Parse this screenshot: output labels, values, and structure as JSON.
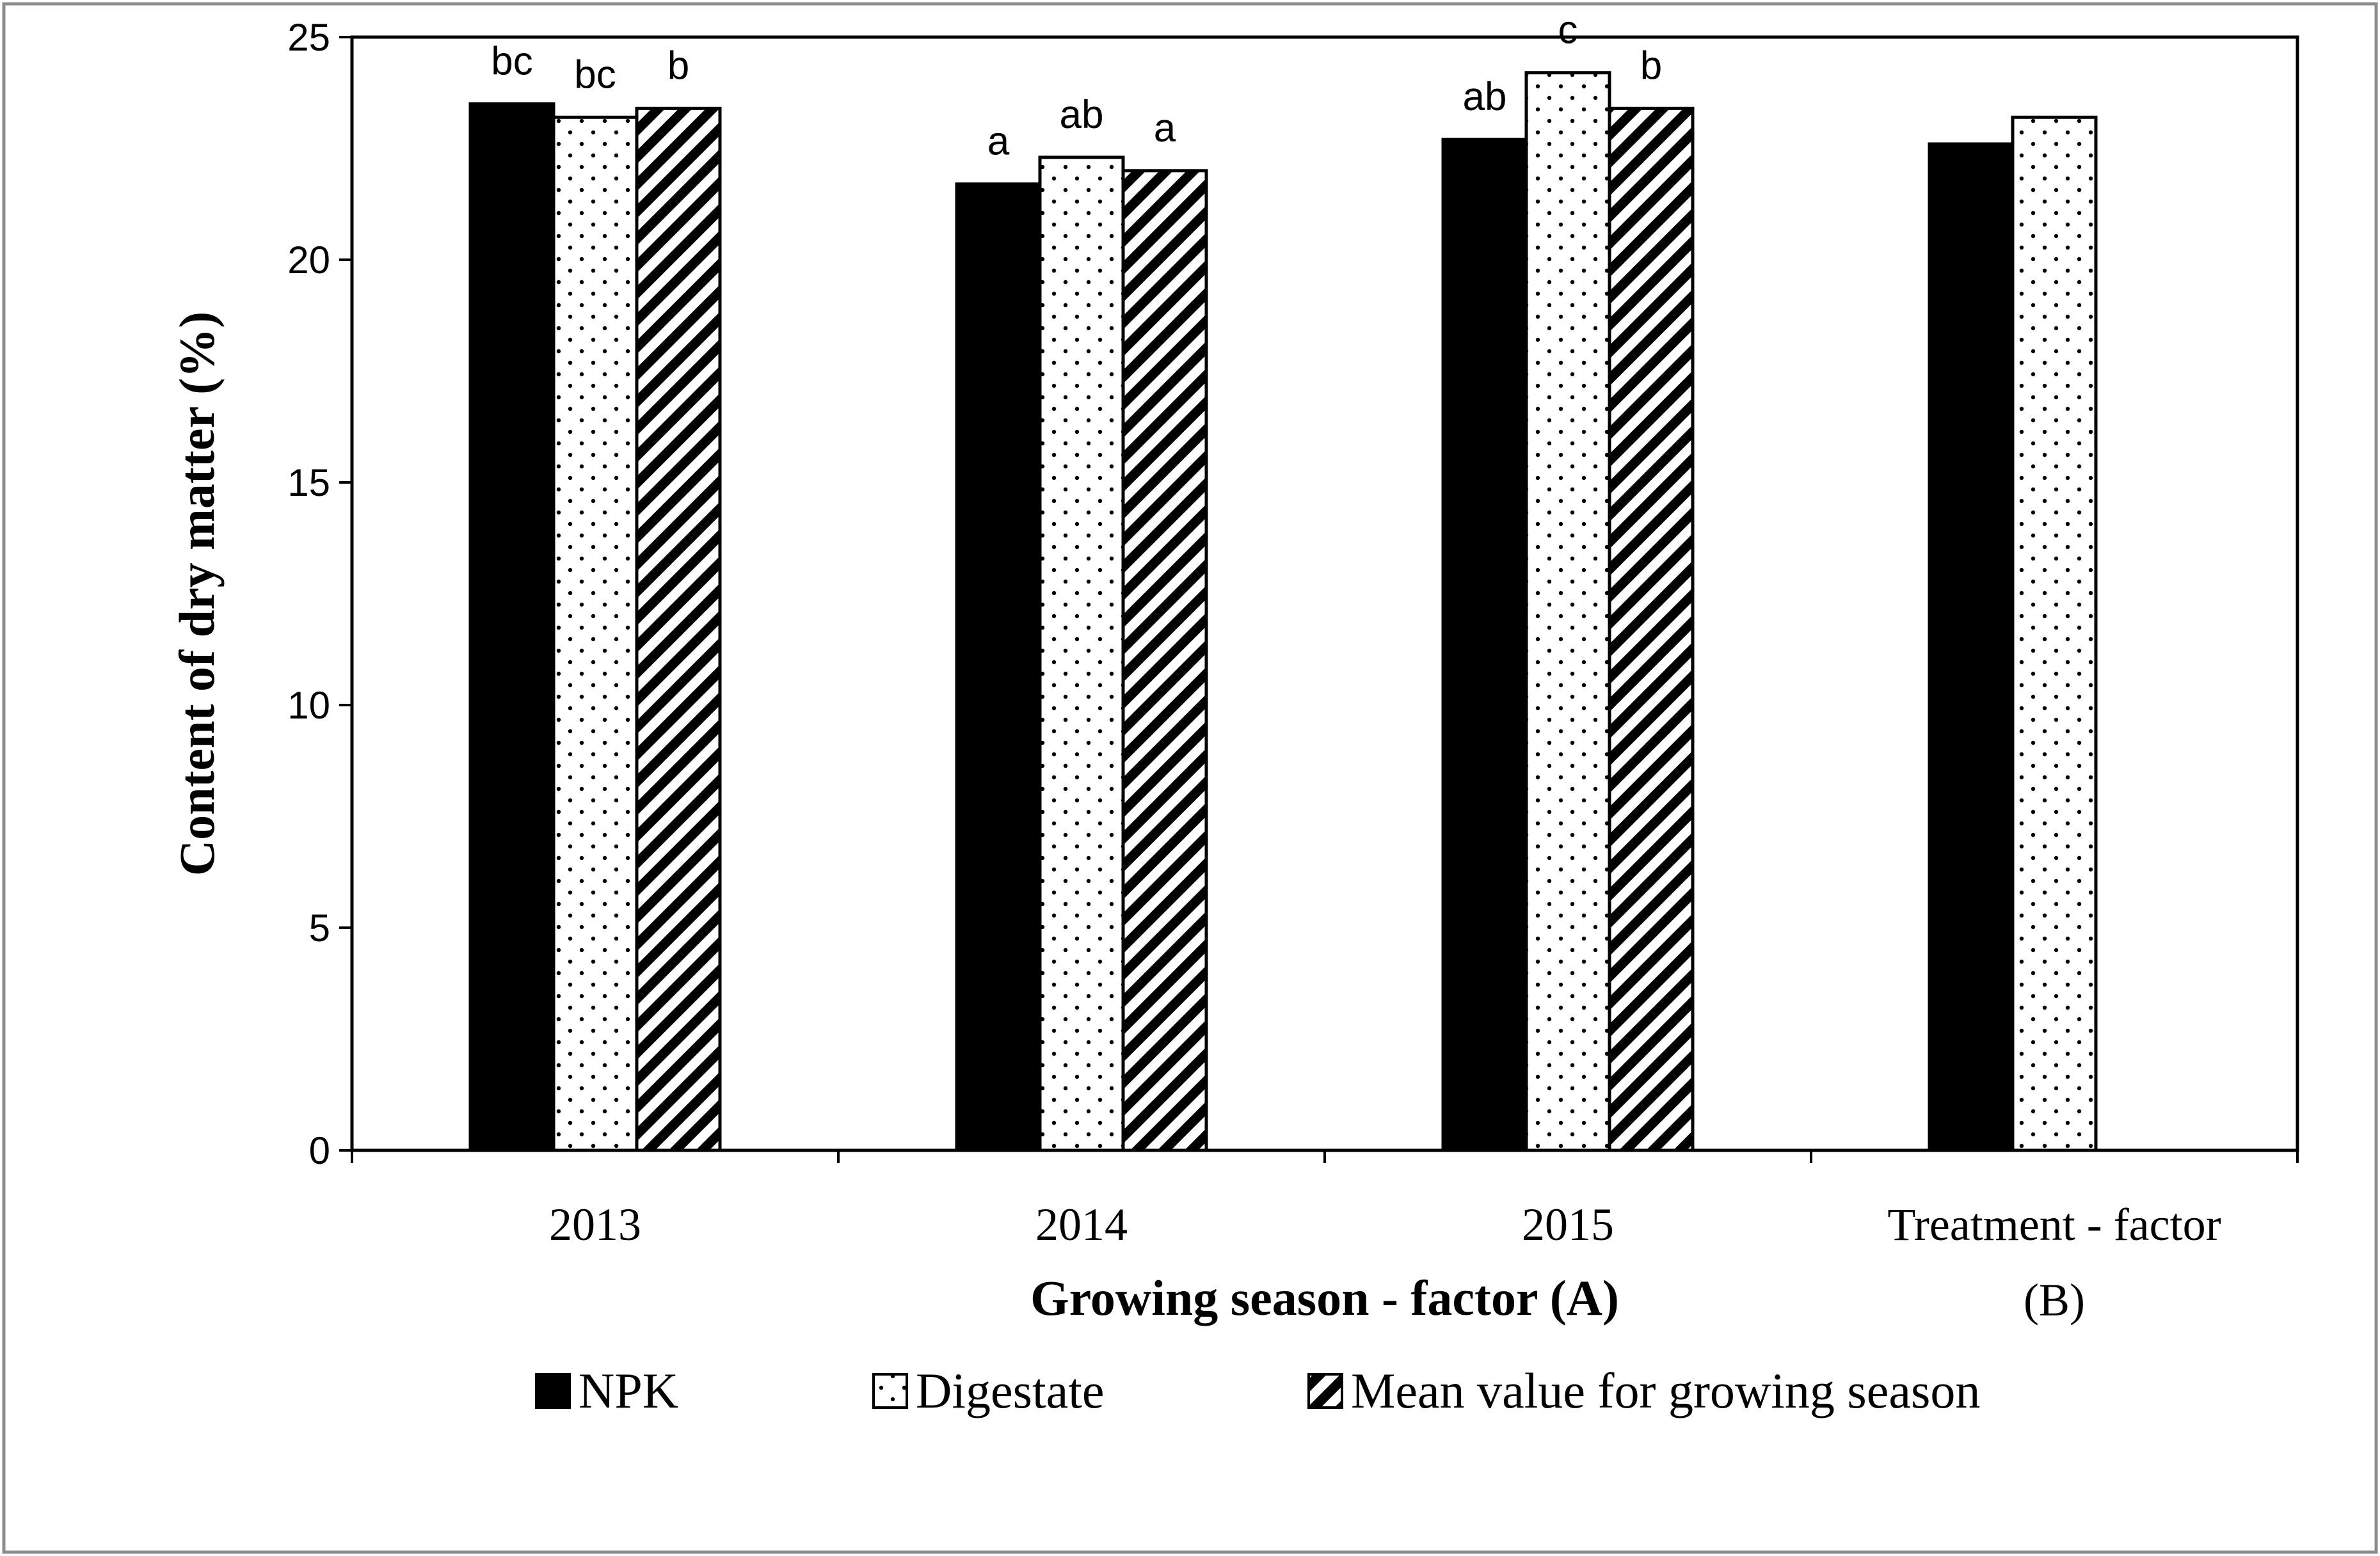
{
  "chart_data": {
    "type": "bar",
    "categories": [
      "2013",
      "2014",
      "2015",
      "Treatment - factor (B)"
    ],
    "category_lines": [
      [
        "2013"
      ],
      [
        "2014"
      ],
      [
        "2015"
      ],
      [
        "Treatment - factor",
        "(B)"
      ]
    ],
    "series": [
      {
        "name": "NPK",
        "pattern": "solid",
        "values": [
          23.5,
          21.7,
          22.7,
          22.6
        ],
        "labels": [
          "bc",
          "a",
          "ab",
          ""
        ]
      },
      {
        "name": "Digestate",
        "pattern": "dots",
        "values": [
          23.2,
          22.3,
          24.2,
          23.2
        ],
        "labels": [
          "bc",
          "ab",
          "c",
          ""
        ]
      },
      {
        "name": "Mean value for growing season",
        "pattern": "hatch",
        "values": [
          23.4,
          22.0,
          23.4,
          null
        ],
        "labels": [
          "b",
          "a",
          "b",
          ""
        ]
      }
    ],
    "ylabel": "Content of dry matter (%)",
    "xlabel": "Growing season - factor (A)",
    "ylim": [
      0,
      25
    ],
    "yticks": [
      0,
      5,
      10,
      15,
      20,
      25
    ],
    "legend_position": "bottom",
    "colors": {
      "ink": "#000000",
      "paper": "#ffffff",
      "frame": "#8c8c8c"
    }
  }
}
